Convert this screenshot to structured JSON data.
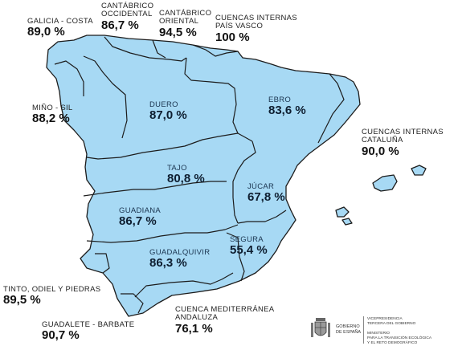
{
  "colors": {
    "region_fill": "#a7d9f4",
    "region_stroke": "#1c1c1c",
    "text": "#111111"
  },
  "basins": [
    {
      "id": "galicia-costa",
      "name": "GALICIA - COSTA",
      "value": "89,0 %"
    },
    {
      "id": "cantabrico-occidental",
      "name": "CANTÁBRICO\nOCCIDENTAL",
      "value": "86,7 %"
    },
    {
      "id": "cantabrico-oriental",
      "name": "CANTÁBRICO\nORIENTAL",
      "value": "94,5 %"
    },
    {
      "id": "cuencas-pais-vasco",
      "name": "CUENCAS INTERNAS\nPAÍS VASCO",
      "value": "100 %"
    },
    {
      "id": "mino-sil",
      "name": "MIÑO - SIL",
      "value": "88,2 %"
    },
    {
      "id": "duero",
      "name": "DUERO",
      "value": "87,0 %"
    },
    {
      "id": "ebro",
      "name": "EBRO",
      "value": "83,6 %"
    },
    {
      "id": "cuencas-cataluna",
      "name": "CUENCAS INTERNAS\nCATALUÑA",
      "value": "90,0 %"
    },
    {
      "id": "tajo",
      "name": "TAJO",
      "value": "80,8 %"
    },
    {
      "id": "jucar",
      "name": "JÚCAR",
      "value": "67,8 %"
    },
    {
      "id": "guadiana",
      "name": "GUADIANA",
      "value": "86,7 %"
    },
    {
      "id": "segura",
      "name": "SEGURA",
      "value": "55,4 %"
    },
    {
      "id": "guadalquivir",
      "name": "GUADALQUIVIR",
      "value": "86,3 %"
    },
    {
      "id": "tinto-odiel-piedras",
      "name": "TINTO, ODIEL Y PIEDRAS",
      "value": "89,5 %"
    },
    {
      "id": "cuenca-mediterranea-andaluza",
      "name": "CUENCA MEDITERRÁNEA\nANDALUZA",
      "value": "76,1 %"
    },
    {
      "id": "guadalete-barbate",
      "name": "GUADALETE - BARBATE",
      "value": "90,7 %"
    }
  ],
  "footer": {
    "gobierno": "GOBIERNO\nDE ESPAÑA",
    "ministry": "VICEPRESIDENCIA\nTERCERA DEL GOBIERNO\n\nMINISTERIO\nPARA LA TRANSICIÓN ECOLÓGICA\nY EL RETO DEMOGRÁFICO"
  }
}
